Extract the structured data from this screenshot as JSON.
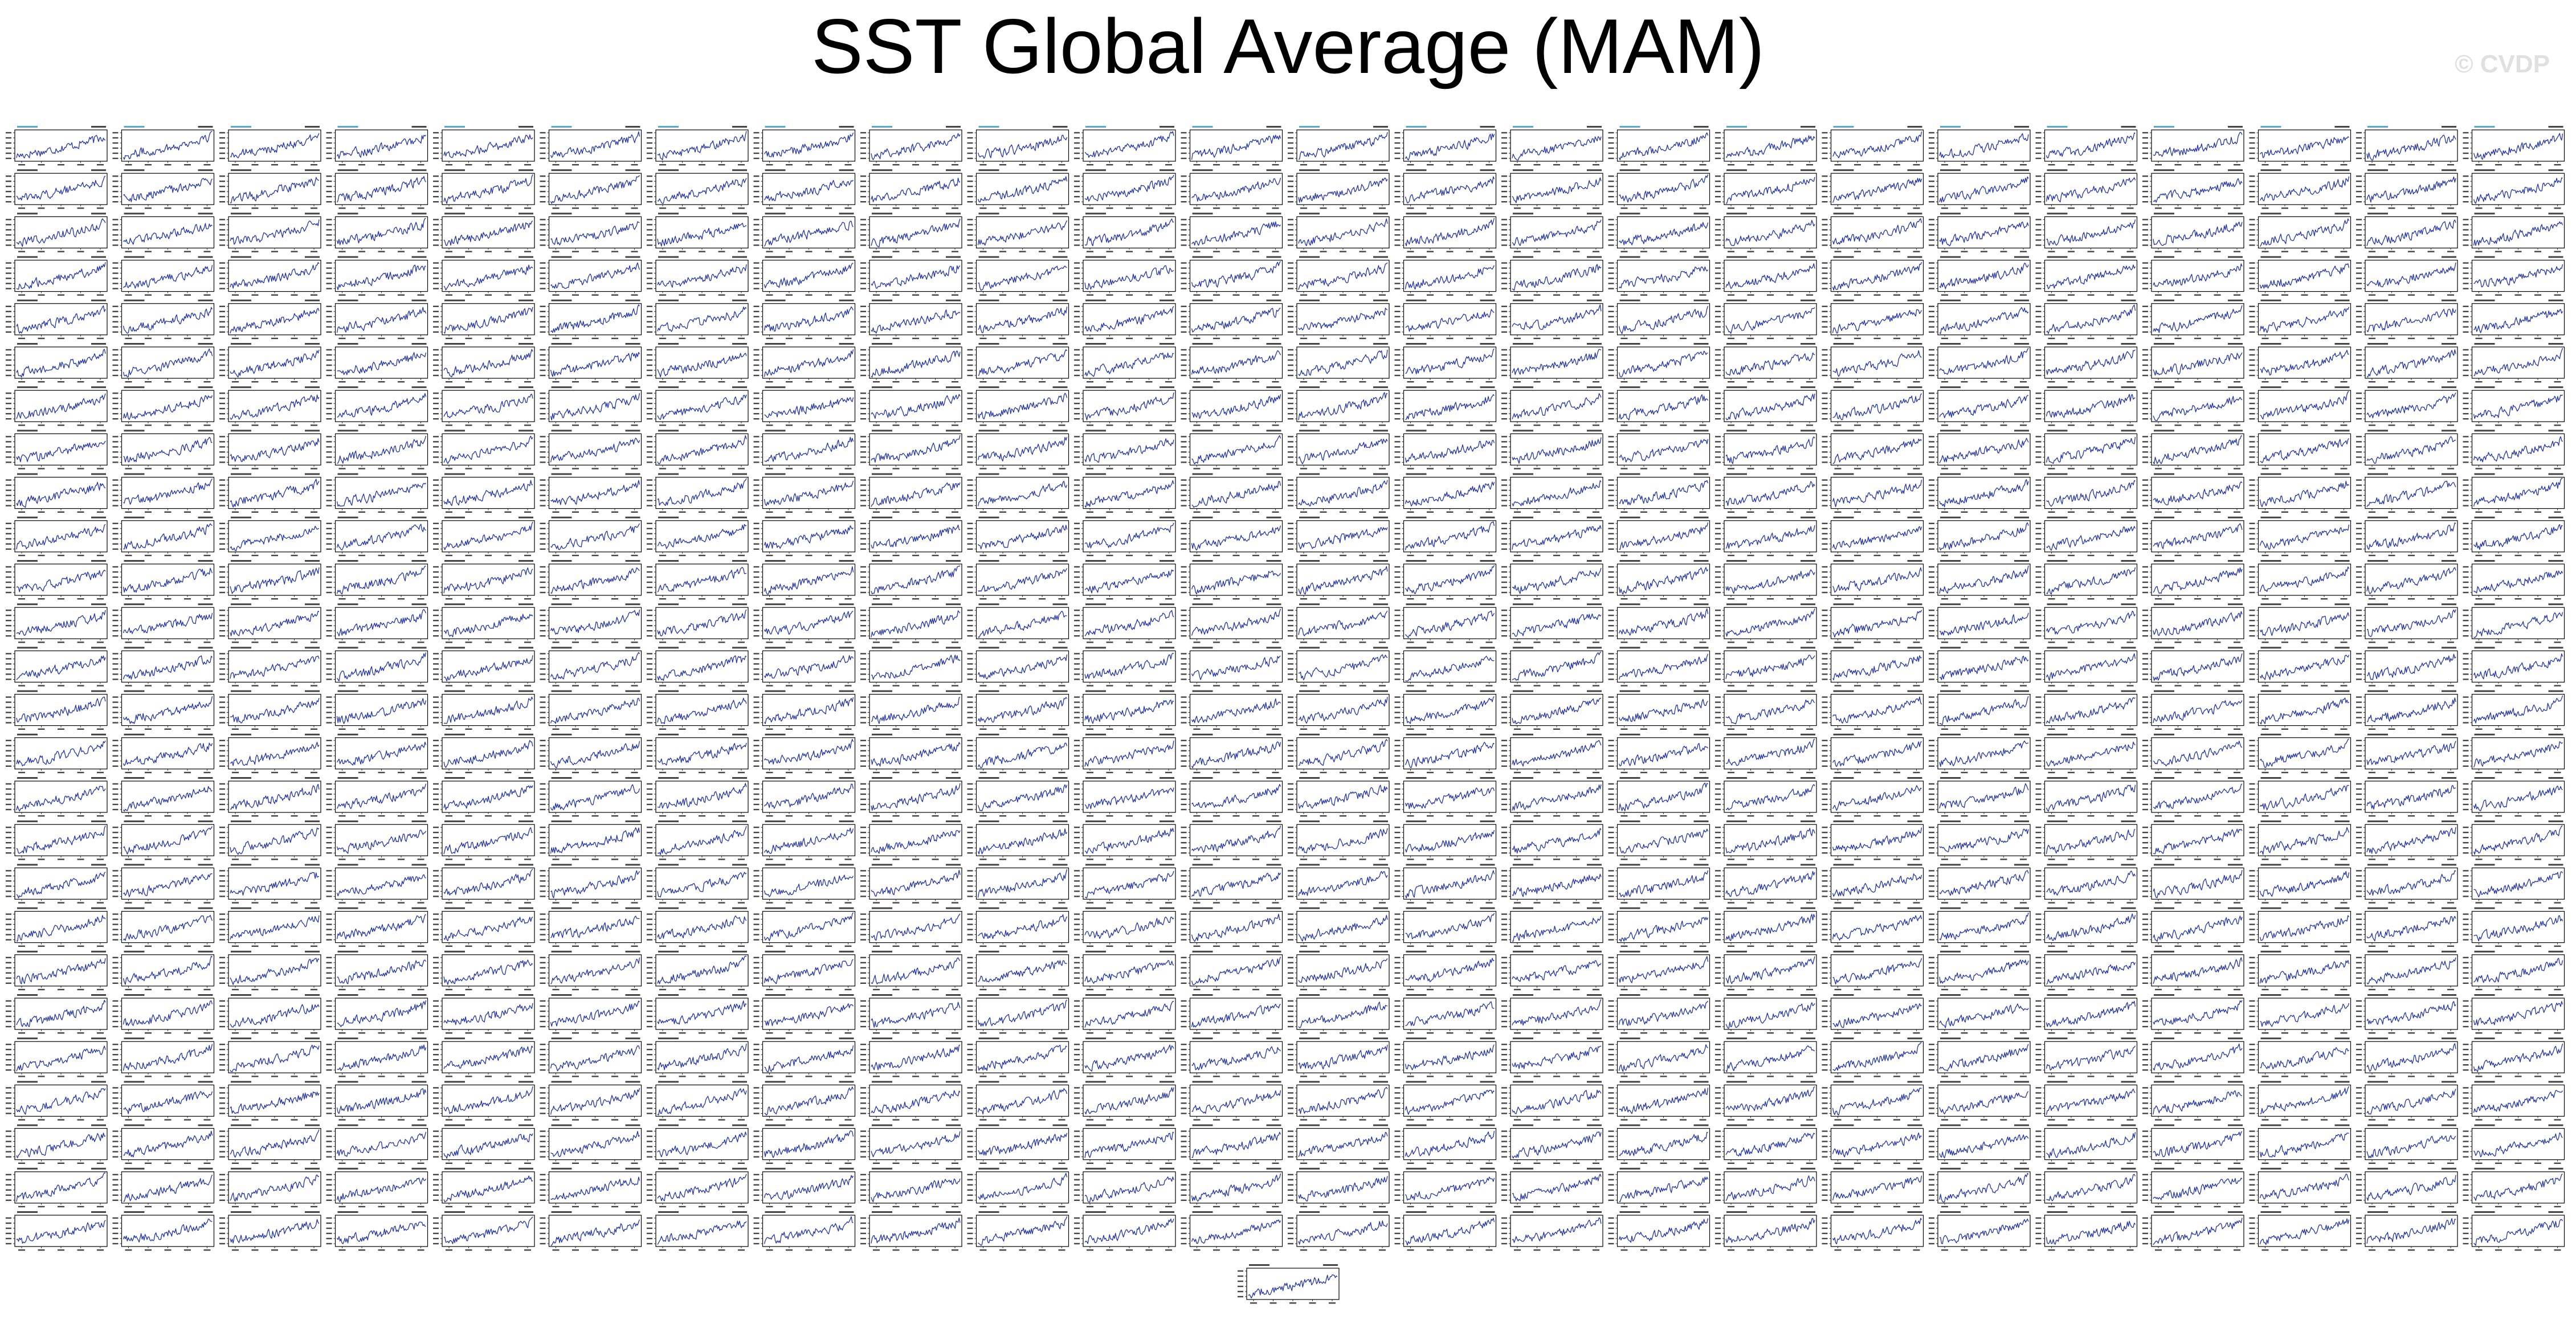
{
  "title": "SST Global Average (MAM)",
  "watermark": "© CVDP",
  "colors": {
    "series": "#2233aa",
    "frame": "#000000",
    "panel_label": "#55aacc",
    "tick_text": "#444444"
  },
  "chart_data": {
    "type": "line",
    "layout": "small-multiples",
    "title": "SST Global Average (MAM)",
    "xlabel": "",
    "ylabel": "",
    "grid": false,
    "legend": "none",
    "panel_rows": 26,
    "panel_columns": 24,
    "full_panels": 624,
    "extra_bottom_panels": 1,
    "representative_series": {
      "x": [
        1920,
        1925,
        1930,
        1935,
        1940,
        1945,
        1950,
        1955,
        1960,
        1965,
        1970,
        1975,
        1980,
        1985,
        1990,
        1995,
        2000,
        2005,
        2010
      ],
      "y": [
        -0.35,
        -0.33,
        -0.3,
        -0.26,
        -0.22,
        -0.24,
        -0.2,
        -0.17,
        -0.12,
        -0.1,
        -0.06,
        -0.04,
        0.0,
        0.04,
        0.08,
        0.12,
        0.16,
        0.2,
        0.3
      ]
    }
  }
}
